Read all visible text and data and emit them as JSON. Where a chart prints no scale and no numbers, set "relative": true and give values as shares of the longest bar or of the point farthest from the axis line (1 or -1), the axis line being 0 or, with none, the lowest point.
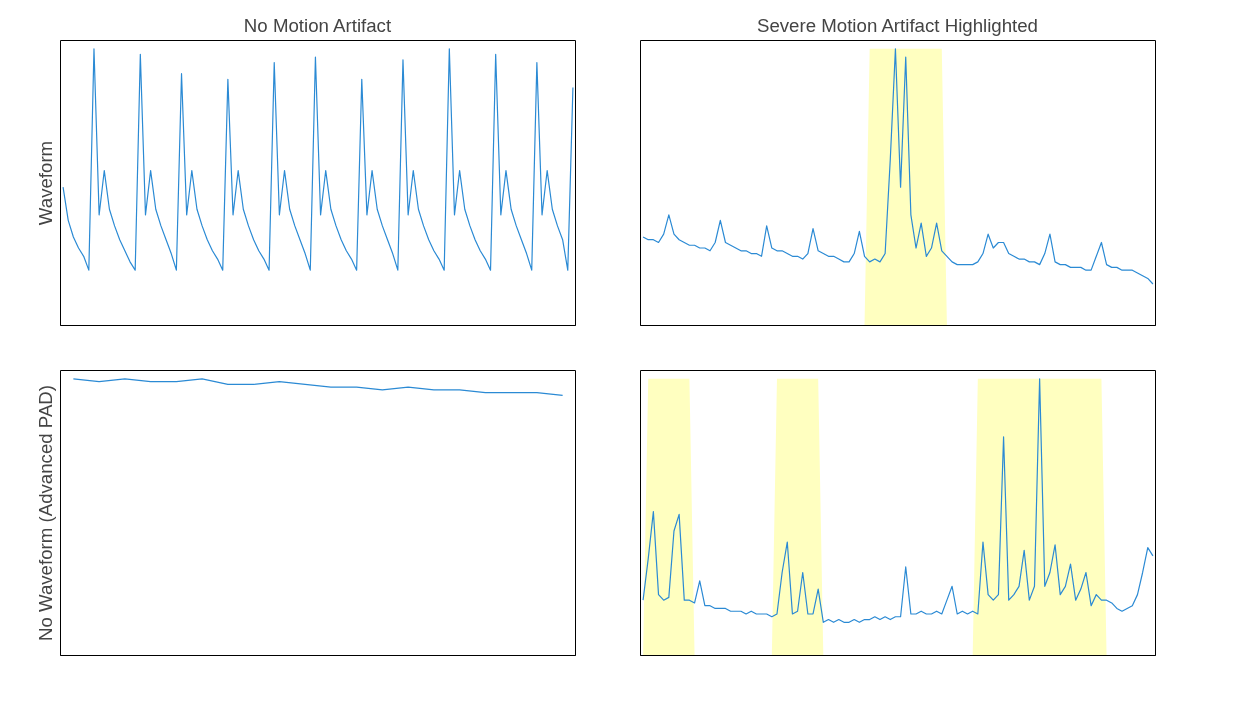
{
  "chart_data": [
    {
      "type": "line",
      "title": "No Motion Artifact",
      "ylabel": "Waveform",
      "relative": true,
      "grid": false,
      "categories": [
        null,
        null,
        null,
        null,
        null,
        null,
        null,
        null,
        null,
        null,
        null,
        null,
        null,
        null,
        null,
        null,
        null,
        null,
        null,
        null,
        null,
        null,
        null,
        null,
        null,
        null,
        null,
        null,
        null,
        null,
        null,
        null,
        null,
        null,
        null,
        null,
        null,
        null,
        null,
        null,
        null,
        null,
        null,
        null,
        null,
        null,
        null,
        null,
        null,
        null,
        null,
        null,
        null,
        null,
        null,
        null,
        null,
        null,
        null,
        null,
        null,
        null,
        null,
        null,
        null,
        null,
        null,
        null,
        null,
        null,
        null,
        null,
        null,
        null,
        null,
        null,
        null,
        null,
        null,
        null,
        null,
        null,
        null,
        null,
        null,
        null,
        null,
        null,
        null,
        null,
        null,
        null,
        null,
        null,
        null,
        null,
        null,
        null,
        null,
        null
      ],
      "series": [
        {
          "color": "#2b8ad4",
          "values": [
            0.5,
            0.38,
            0.32,
            0.28,
            0.25,
            0.2,
            1.0,
            0.4,
            0.56,
            0.42,
            0.36,
            0.31,
            0.27,
            0.23,
            0.2,
            0.98,
            0.4,
            0.56,
            0.42,
            0.36,
            0.31,
            0.26,
            0.2,
            0.91,
            0.4,
            0.56,
            0.42,
            0.36,
            0.31,
            0.27,
            0.24,
            0.2,
            0.89,
            0.4,
            0.56,
            0.42,
            0.36,
            0.31,
            0.27,
            0.24,
            0.2,
            0.95,
            0.4,
            0.56,
            0.42,
            0.36,
            0.31,
            0.26,
            0.2,
            0.97,
            0.4,
            0.56,
            0.42,
            0.36,
            0.31,
            0.27,
            0.24,
            0.2,
            0.89,
            0.4,
            0.56,
            0.42,
            0.36,
            0.31,
            0.26,
            0.2,
            0.96,
            0.4,
            0.56,
            0.42,
            0.36,
            0.31,
            0.27,
            0.24,
            0.2,
            1.0,
            0.4,
            0.56,
            0.42,
            0.36,
            0.31,
            0.27,
            0.24,
            0.2,
            0.98,
            0.4,
            0.56,
            0.42,
            0.36,
            0.31,
            0.26,
            0.2,
            0.95,
            0.4,
            0.56,
            0.42,
            0.36,
            0.31,
            0.2,
            0.86
          ]
        }
      ]
    },
    {
      "type": "line",
      "title": "Severe Motion Artifact Highlighted",
      "relative": true,
      "grid": false,
      "categories": [
        null,
        null,
        null,
        null,
        null,
        null,
        null,
        null,
        null,
        null,
        null,
        null,
        null,
        null,
        null,
        null,
        null,
        null,
        null,
        null,
        null,
        null,
        null,
        null,
        null,
        null,
        null,
        null,
        null,
        null,
        null,
        null,
        null,
        null,
        null,
        null,
        null,
        null,
        null,
        null,
        null,
        null,
        null,
        null,
        null,
        null,
        null,
        null,
        null,
        null,
        null,
        null,
        null,
        null,
        null,
        null,
        null,
        null,
        null,
        null,
        null,
        null,
        null,
        null,
        null,
        null,
        null,
        null,
        null,
        null,
        null,
        null,
        null,
        null,
        null,
        null,
        null,
        null,
        null,
        null,
        null,
        null,
        null,
        null,
        null,
        null,
        null,
        null,
        null,
        null,
        null,
        null,
        null,
        null,
        null,
        null,
        null,
        null,
        null,
        null
      ],
      "series": [
        {
          "type": "area",
          "color": "#ffffc0",
          "values": [
            0,
            0,
            0,
            0,
            0,
            0,
            0,
            0,
            0,
            0,
            0,
            0,
            0,
            0,
            0,
            0,
            0,
            0,
            0,
            0,
            0,
            0,
            0,
            0,
            0,
            0,
            0,
            0,
            0,
            0,
            0,
            0,
            0,
            0,
            0,
            0,
            0,
            0,
            0,
            0,
            0,
            0,
            0,
            0,
            1,
            1,
            1,
            1,
            1,
            1,
            1,
            1,
            1,
            1,
            1,
            1,
            1,
            1,
            1,
            0,
            0,
            0,
            0,
            0,
            0,
            0,
            0,
            0,
            0,
            0,
            0,
            0,
            0,
            0,
            0,
            0,
            0,
            0,
            0,
            0,
            0,
            0,
            0,
            0,
            0,
            0,
            0,
            0,
            0,
            0,
            0,
            0,
            0,
            0,
            0,
            0,
            0,
            0,
            0,
            0
          ]
        },
        {
          "color": "#2b8ad4",
          "values": [
            0.32,
            0.31,
            0.31,
            0.3,
            0.33,
            0.4,
            0.33,
            0.31,
            0.3,
            0.29,
            0.29,
            0.28,
            0.28,
            0.27,
            0.3,
            0.38,
            0.3,
            0.29,
            0.28,
            0.27,
            0.27,
            0.26,
            0.26,
            0.25,
            0.36,
            0.28,
            0.27,
            0.27,
            0.26,
            0.25,
            0.25,
            0.24,
            0.26,
            0.35,
            0.27,
            0.26,
            0.25,
            0.25,
            0.24,
            0.23,
            0.23,
            0.26,
            0.34,
            0.25,
            0.23,
            0.24,
            0.23,
            0.26,
            0.6,
            1.0,
            0.5,
            0.97,
            0.4,
            0.28,
            0.37,
            0.25,
            0.28,
            0.37,
            0.27,
            0.25,
            0.23,
            0.22,
            0.22,
            0.22,
            0.22,
            0.23,
            0.26,
            0.33,
            0.28,
            0.3,
            0.3,
            0.26,
            0.25,
            0.24,
            0.24,
            0.23,
            0.23,
            0.22,
            0.26,
            0.33,
            0.23,
            0.22,
            0.22,
            0.21,
            0.21,
            0.21,
            0.2,
            0.2,
            0.25,
            0.3,
            0.22,
            0.21,
            0.21,
            0.2,
            0.2,
            0.2,
            0.19,
            0.18,
            0.17,
            0.15
          ]
        }
      ]
    },
    {
      "type": "line",
      "ylabel": "No Waveform (Advanced PAD)",
      "relative": true,
      "grid": false,
      "categories": [
        null,
        null,
        null,
        null,
        null,
        null,
        null,
        null,
        null,
        null,
        null,
        null,
        null,
        null,
        null,
        null,
        null,
        null,
        null,
        null
      ],
      "series": [
        {
          "color": "#2b8ad4",
          "values": [
            1.0,
            0.99,
            1.0,
            0.99,
            0.99,
            1.0,
            0.98,
            0.98,
            0.99,
            0.98,
            0.97,
            0.97,
            0.96,
            0.97,
            0.96,
            0.96,
            0.95,
            0.95,
            0.95,
            0.94
          ]
        }
      ]
    },
    {
      "type": "line",
      "relative": true,
      "grid": false,
      "categories": [
        null,
        null,
        null,
        null,
        null,
        null,
        null,
        null,
        null,
        null,
        null,
        null,
        null,
        null,
        null,
        null,
        null,
        null,
        null,
        null,
        null,
        null,
        null,
        null,
        null,
        null,
        null,
        null,
        null,
        null,
        null,
        null,
        null,
        null,
        null,
        null,
        null,
        null,
        null,
        null,
        null,
        null,
        null,
        null,
        null,
        null,
        null,
        null,
        null,
        null,
        null,
        null,
        null,
        null,
        null,
        null,
        null,
        null,
        null,
        null,
        null,
        null,
        null,
        null,
        null,
        null,
        null,
        null,
        null,
        null,
        null,
        null,
        null,
        null,
        null,
        null,
        null,
        null,
        null,
        null,
        null,
        null,
        null,
        null,
        null,
        null,
        null,
        null,
        null,
        null,
        null,
        null,
        null,
        null,
        null,
        null,
        null,
        null,
        null,
        null
      ],
      "series": [
        {
          "type": "area",
          "color": "#ffffc0",
          "values": [
            0,
            1,
            1,
            1,
            1,
            1,
            1,
            1,
            1,
            1,
            0,
            0,
            0,
            0,
            0,
            0,
            0,
            0,
            0,
            0,
            0,
            0,
            0,
            0,
            0,
            0,
            1,
            1,
            1,
            1,
            1,
            1,
            1,
            1,
            1,
            0,
            0,
            0,
            0,
            0,
            0,
            0,
            0,
            0,
            0,
            0,
            0,
            0,
            0,
            0,
            0,
            0,
            0,
            0,
            0,
            0,
            0,
            0,
            0,
            0,
            0,
            0,
            0,
            0,
            0,
            1,
            1,
            1,
            1,
            1,
            1,
            1,
            1,
            1,
            1,
            1,
            1,
            1,
            1,
            1,
            1,
            1,
            1,
            1,
            1,
            1,
            1,
            1,
            1,
            1,
            0,
            0,
            0,
            0,
            0,
            0,
            0,
            0,
            0,
            0
          ]
        },
        {
          "color": "#2b8ad4",
          "values": [
            0.2,
            0.35,
            0.52,
            0.22,
            0.2,
            0.21,
            0.45,
            0.51,
            0.2,
            0.2,
            0.19,
            0.27,
            0.18,
            0.18,
            0.17,
            0.17,
            0.17,
            0.16,
            0.16,
            0.16,
            0.15,
            0.16,
            0.15,
            0.15,
            0.15,
            0.14,
            0.15,
            0.3,
            0.41,
            0.15,
            0.16,
            0.3,
            0.15,
            0.15,
            0.24,
            0.12,
            0.13,
            0.12,
            0.13,
            0.12,
            0.12,
            0.13,
            0.12,
            0.13,
            0.13,
            0.14,
            0.13,
            0.14,
            0.13,
            0.14,
            0.14,
            0.32,
            0.15,
            0.15,
            0.16,
            0.15,
            0.15,
            0.16,
            0.15,
            0.2,
            0.25,
            0.15,
            0.16,
            0.15,
            0.16,
            0.15,
            0.41,
            0.22,
            0.2,
            0.22,
            0.79,
            0.2,
            0.22,
            0.25,
            0.38,
            0.2,
            0.25,
            1.0,
            0.25,
            0.3,
            0.4,
            0.22,
            0.25,
            0.33,
            0.2,
            0.24,
            0.3,
            0.18,
            0.22,
            0.2,
            0.2,
            0.19,
            0.17,
            0.16,
            0.17,
            0.18,
            0.22,
            0.3,
            0.39,
            0.36
          ]
        }
      ]
    }
  ]
}
